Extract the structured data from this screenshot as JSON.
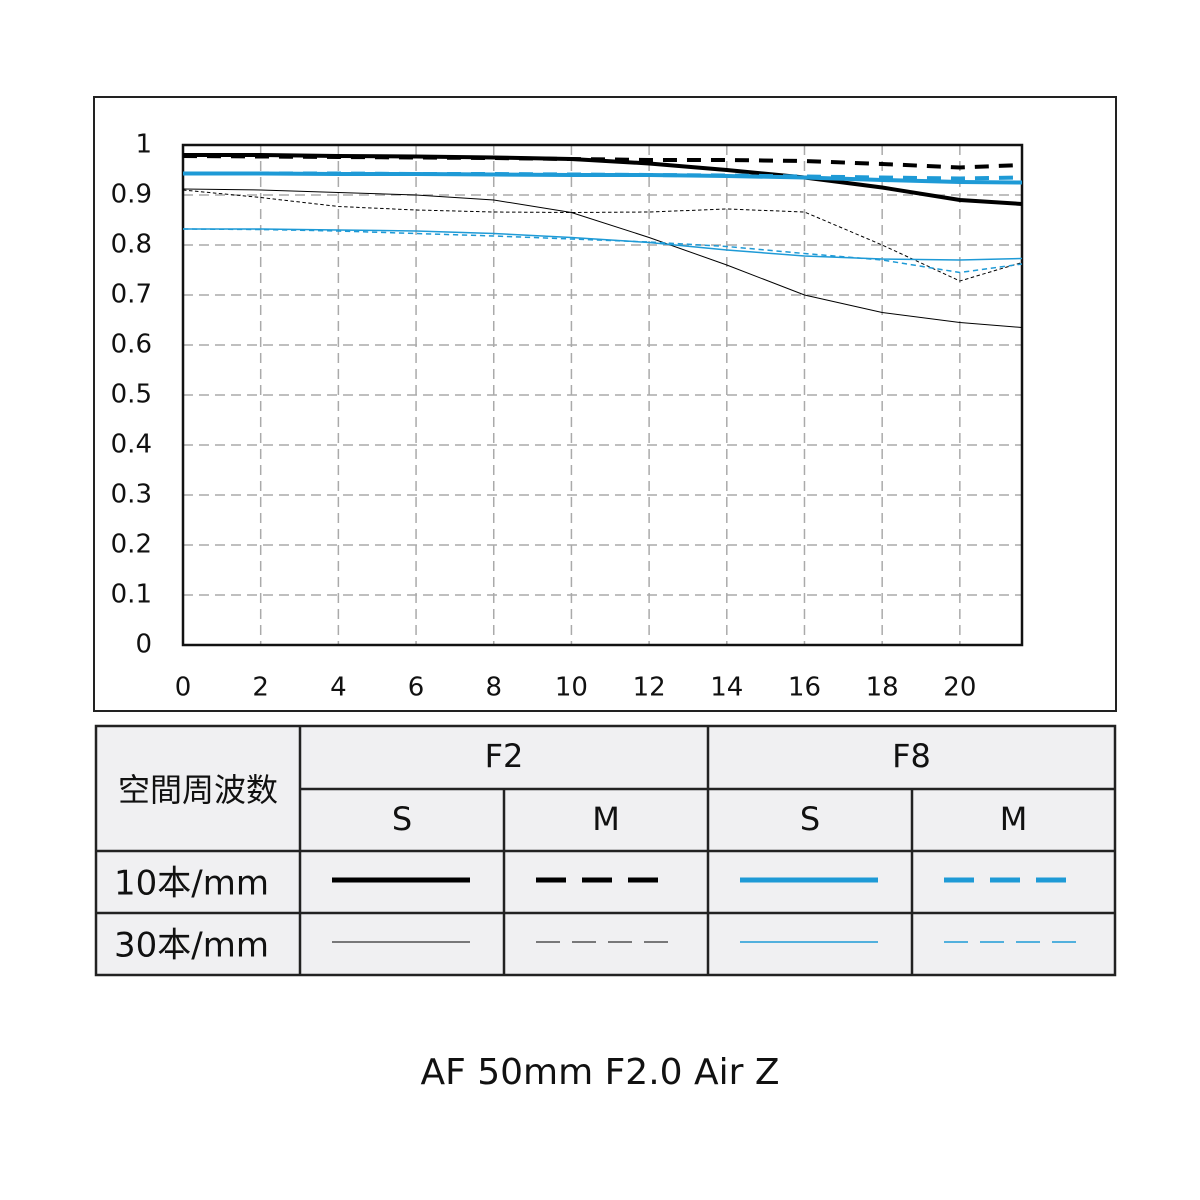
{
  "chart_data": {
    "type": "line",
    "title": "AF 50mm F2.0 Air Z",
    "x": [
      0,
      2,
      4,
      6,
      8,
      10,
      12,
      14,
      16,
      18,
      20,
      21.6
    ],
    "xlim": [
      0,
      21.6
    ],
    "xticks": [
      0,
      2,
      4,
      6,
      8,
      10,
      12,
      14,
      16,
      18,
      20
    ],
    "ylim": [
      0,
      1
    ],
    "yticks": [
      0,
      0.1,
      0.2,
      0.3,
      0.4,
      0.5,
      0.6,
      0.7,
      0.8,
      0.9,
      1
    ],
    "grid": true,
    "series": [
      {
        "color": "#000000",
        "width": 4,
        "dash": false,
        "values": [
          0.98,
          0.98,
          0.978,
          0.977,
          0.975,
          0.972,
          0.963,
          0.95,
          0.935,
          0.915,
          0.89,
          0.882
        ]
      },
      {
        "color": "#000000",
        "width": 4,
        "dash": true,
        "values": [
          0.978,
          0.977,
          0.976,
          0.975,
          0.974,
          0.972,
          0.97,
          0.97,
          0.968,
          0.962,
          0.955,
          0.96
        ]
      },
      {
        "color": "#1e9ad6",
        "width": 4,
        "dash": false,
        "values": [
          0.943,
          0.943,
          0.942,
          0.942,
          0.941,
          0.94,
          0.94,
          0.938,
          0.935,
          0.93,
          0.926,
          0.925
        ]
      },
      {
        "color": "#1e9ad6",
        "width": 4,
        "dash": true,
        "values": [
          0.943,
          0.943,
          0.943,
          0.942,
          0.942,
          0.941,
          0.94,
          0.939,
          0.937,
          0.935,
          0.933,
          0.935
        ]
      },
      {
        "color": "#000000",
        "width": 1,
        "dash": false,
        "values": [
          0.912,
          0.91,
          0.905,
          0.9,
          0.89,
          0.865,
          0.815,
          0.76,
          0.7,
          0.665,
          0.645,
          0.635
        ]
      },
      {
        "color": "#000000",
        "width": 1,
        "dash": true,
        "values": [
          0.91,
          0.895,
          0.877,
          0.87,
          0.866,
          0.865,
          0.866,
          0.872,
          0.866,
          0.8,
          0.728,
          0.765
        ]
      },
      {
        "color": "#1e9ad6",
        "width": 1.5,
        "dash": false,
        "values": [
          0.832,
          0.832,
          0.83,
          0.828,
          0.823,
          0.815,
          0.805,
          0.79,
          0.778,
          0.772,
          0.77,
          0.773
        ]
      },
      {
        "color": "#1e9ad6",
        "width": 1.5,
        "dash": true,
        "values": [
          0.832,
          0.831,
          0.828,
          0.823,
          0.818,
          0.812,
          0.806,
          0.797,
          0.783,
          0.77,
          0.745,
          0.762
        ]
      }
    ]
  },
  "legend_table": {
    "corner": "空間周波数",
    "apertures": [
      "F2",
      "F8"
    ],
    "planes": [
      "S",
      "M",
      "S",
      "M"
    ],
    "frequencies": [
      "10本/mm",
      "30本/mm"
    ]
  }
}
